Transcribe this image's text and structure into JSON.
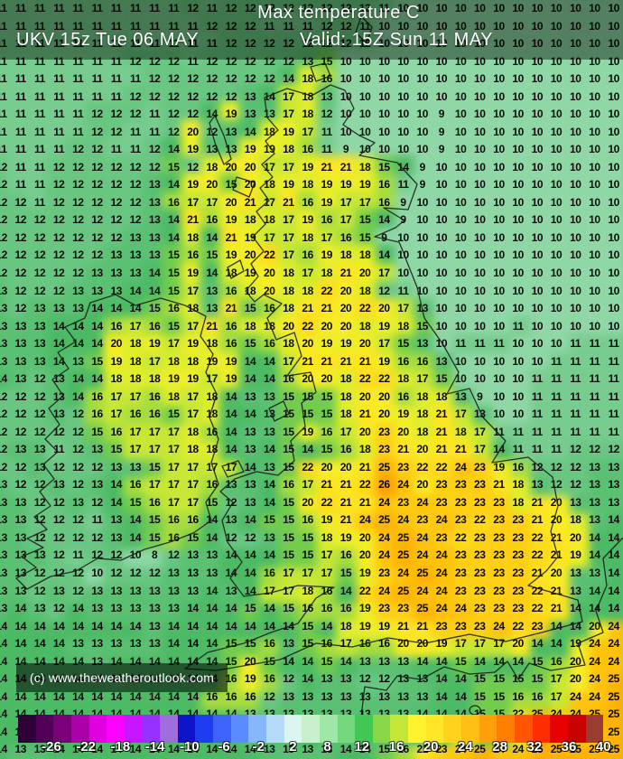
{
  "header": {
    "title": "Max temperature C",
    "run": "UKV 15z Tue 06 MAY",
    "valid": "Valid: 15Z Sun 11 MAY"
  },
  "footer": {
    "copyright": "(c) www.theweatheroutlook.com"
  },
  "scale": {
    "labels": [
      "-26",
      "-22",
      "-18",
      "-14",
      "-10",
      "-6",
      "-2",
      "2",
      "8",
      "12",
      "16",
      "20",
      "24",
      "28",
      "32",
      "36",
      "40"
    ],
    "colors": [
      "#2d0036",
      "#520057",
      "#7a007a",
      "#ad00ad",
      "#e100e1",
      "#ff00ff",
      "#c814ff",
      "#9632ff",
      "#a06edc",
      "#0f14c8",
      "#1e3cf0",
      "#3c64fa",
      "#5a8cff",
      "#87b7fa",
      "#b4dcfa",
      "#dcf5f0",
      "#c8f0cd",
      "#a0e6a5",
      "#73d77d",
      "#41c853",
      "#87d746",
      "#c3e637",
      "#fff32e",
      "#ffe627",
      "#ffd21e",
      "#ffbe14",
      "#ffa00a",
      "#ff7d00",
      "#ff5500",
      "#ff2d00",
      "#e60000",
      "#c80000",
      "#9b3c32"
    ]
  },
  "map": {
    "units": "C",
    "value_colors": {
      "8": "#8fd7a6",
      "9": "#8fd7a6",
      "10": "#8fd7a6",
      "11": "#77cc8e",
      "12": "#69c681",
      "13": "#5ac072",
      "14": "#4cba64",
      "15": "#72cc4d",
      "16": "#a6dc3e",
      "17": "#c8e734",
      "18": "#e0ed2c",
      "19": "#eeee28",
      "20": "#f8ec25",
      "21": "#ffe421",
      "22": "#ffda1b",
      "23": "#ffcf13",
      "24": "#ffc20b",
      "25": "#ffb103",
      "26": "#ff9e00"
    },
    "grid_rows": [
      "11 11 11 11 11 11 11 11 11 11 12 11 12 12 12 12 12 12 12 12 11 10 10 10 10 10 10 10 10 10 10 10 10",
      "11 11 11 11 11 11 11 11 11 11 11 12 12 12 11 11 11 12 12 11 10 10 10 10 10 10 10 10 10 10 10 10 10",
      "11 11 11 11 11 11 11 11 11 11 11 11 12 12 12 12 12 12 12 12 10 10 10 10 10 10 10 10 10 10 10 10 10",
      "11 11 11 11 11 11 11 12 12 12 11 12 12 12 12 12 13 15 10 10 10 10 10 10 10 10 10 10 10 10 10 10 10",
      "11 11 11 11 11 11 11 11 12 12 12 12 12 12 12 14 18 16 10 10 10 10 10 10 10 10 10 10 10 10 10 10 10",
      "11 11 11 11 11 11 11 12 12 12 12 12 12 13 14 17 18 13 10 10 10 10 10 10 10 10 10 10 10 10 10 10 10",
      "11 11 11 11 11 12 12 12 11 12 12 14 19 13 13 17 18 12 10 10 10 10 10 9 10 10 10 10 10 10 10 10 10",
      "11 11 11 11 11 12 12 11 11 12 20 12 13 14 18 19 17 11 10 10 10 10 10 9 10 10 10 10 10 10 10 10 10",
      "11 11 11 11 12 12 11 11 12 14 19 13 13 19 19 18 16 11 9 10 10 10 10 9 10 10 10 10 10 10 10 10 10",
      "12 11 11 12 12 12 12 12 12 15 12 18 20 20 17 17 19 21 21 18 15 14 9 10 10 10 10 10 10 10 10 10 10",
      "12 11 11 12 12 12 12 12 13 14 19 20 15 20 18 19 18 19 19 19 16 11 9 10 10 10 10 10 10 10 10 10 10",
      "12 12 11 12 12 12 12 12 13 16 17 17 20 21 17 21 16 19 17 17 16 9 10 10 10 10 10 10 10 10 10 10 10",
      "12 12 12 12 12 12 12 12 13 14 21 16 19 18 18 17 19 16 17 15 14 9 10 10 10 10 10 10 10 10 10 10 10",
      "12 12 12 12 12 12 12 13 13 14 18 14 21 19 17 17 18 17 16 15 9 10 10 10 10 10 10 10 10 10 10 10 10",
      "12 12 12 12 12 12 13 13 13 15 16 15 19 20 22 17 16 19 18 18 14 10 10 10 10 10 10 10 10 10 10 10 10",
      "12 12 12 12 12 13 13 13 14 15 19 14 18 19 20 18 17 18 21 20 17 10 10 10 10 10 10 10 10 10 10 10 10",
      "13 12 12 12 13 13 13 14 14 15 17 13 16 18 20 18 18 22 20 18 12 11 10 10 10 10 10 10 10 10 10 10 10",
      "13 12 13 13 13 14 14 14 15 16 18 13 21 15 16 18 21 21 20 22 20 17 13 10 10 10 10 10 10 10 10 10 10",
      "13 13 13 14 14 14 16 17 16 15 17 21 16 18 18 20 22 20 20 18 19 18 15 10 10 10 10 11 10 10 10 10 10",
      "13 13 13 14 14 14 20 18 19 17 19 18 16 15 16 18 20 19 19 20 17 15 13 10 11 11 11 10 10 10 11 11 11",
      "13 13 13 14 13 15 19 18 17 18 18 19 19 14 14 17 21 21 21 21 19 16 16 13 10 10 10 10 10 11 11 11 11",
      "14 13 12 13 14 14 18 18 18 19 19 17 19 14 14 16 20 20 18 22 22 18 17 15 10 10 10 10 11 11 11 11 11",
      "12 12 12 13 14 16 17 17 16 18 17 18 14 13 13 15 15 15 18 20 20 16 18 18 13 9 10 10 11 11 11 11 11",
      "12 12 12 13 12 16 17 16 16 15 17 18 14 14 13 15 15 15 18 21 20 19 18 21 17 13 10 10 11 11 11 11 11",
      "12 12 12 12 12 15 16 17 17 17 18 16 14 13 13 15 19 16 17 20 23 20 18 21 18 17 11 11 11 11 11 11 11",
      "12 13 13 11 12 13 15 17 17 17 18 18 14 13 14 15 14 15 16 18 23 21 20 21 21 17 14 11 11 11 12 12 12",
      "12 12 13 12 12 12 13 13 15 17 17 17 17 14 13 15 22 20 20 21 25 23 22 22 24 23 19 16 12 12 12 13 13",
      "13 12 12 13 12 13 14 16 17 17 17 16 13 13 14 16 17 21 21 22 26 24 20 23 23 23 21 18 13 12 12 13 13",
      "13 13 12 12 13 12 14 15 16 17 17 15 12 13 14 15 20 22 21 21 24 23 24 23 23 23 23 18 21 20 13 13 13",
      "13 13 12 12 12 11 13 14 15 16 16 14 13 14 15 15 16 19 21 24 25 24 23 24 23 22 23 23 21 20 18 13 14",
      "13 13 12 12 12 12 13 14 15 16 15 14 12 12 13 15 15 18 19 20 24 25 24 23 22 23 23 23 22 21 20 14 14",
      "13 13 13 12 11 12 12 10 8 12 13 13 14 14 14 15 15 17 16 20 24 25 24 24 23 23 23 23 22 21 19 14 14",
      "13 13 12 12 12 10 12 12 12 13 13 13 14 14 16 17 17 17 15 19 23 24 25 24 23 23 23 23 21 20 13 13 14",
      "13 13 12 13 12 13 13 13 13 13 13 14 13 14 17 17 18 16 14 22 24 25 24 24 23 23 23 23 22 21 13 14 14",
      "13 14 13 12 14 13 13 13 13 13 14 14 14 15 14 15 16 16 16 19 23 23 25 24 24 23 23 23 22 21 14 14 14",
      "14 14 14 14 14 14 14 14 13 14 14 14 14 14 14 14 15 14 18 19 19 21 21 23 23 23 24 22 23 14 14 20 24",
      "14 14 14 14 13 13 13 13 13 14 14 14 15 15 16 13 15 16 17 16 16 20 20 19 17 17 17 20 14 14 19 24 24",
      "14 14 14 14 14 13 14 14 14 14 14 14 15 20 15 14 14 15 14 13 13 13 14 14 15 14 14 14 15 16 20 24 24",
      "14 14 14 14 14 14 13 14 14 14 14 14 16 19 16 12 14 13 13 12 12 13 13 14 14 15 15 15 15 17 20 24 25",
      "14 14 14 14 14 14 14 14 14 14 14 16 16 16 12 13 13 13 13 13 13 13 13 14 14 15 15 16 16 17 24 24 25",
      "14 14 14 14 14 14 14 14 14 14 14 14 14 13 13 13 13 13 13 13 13 13 14 14 14 15 15 22 25 24 24 25 25",
      "14 14 14 14 14 14 14 14 14 14 14 14 14 13 13 13 14 13 13 13 13 13 13 15 19 15 15 18 26 25 24 24 25",
      "14 13 13 14 14 14 14 14 14 14 14 14 14 14 13 13 13 13 14 14 15 16 21 23 24 25 24 24 25 25 25 25 25"
    ]
  }
}
